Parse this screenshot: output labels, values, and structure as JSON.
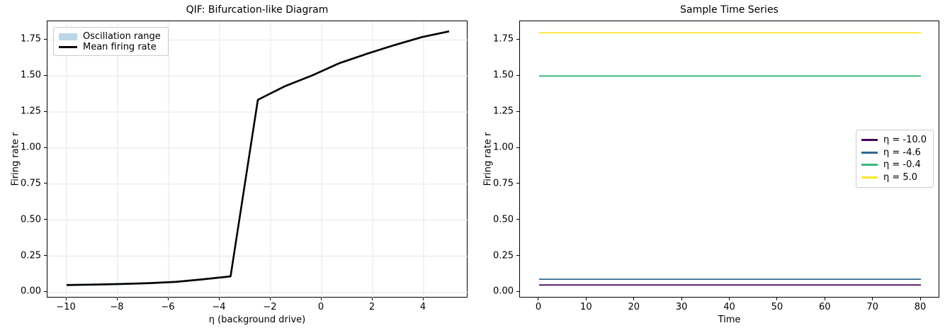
{
  "figure": {
    "background": "#ffffff"
  },
  "chart_data": [
    {
      "type": "line",
      "title": "QIF: Bifurcation-like Diagram",
      "xlabel": "η (background drive)",
      "ylabel": "Firing rate r",
      "xlim": [
        -10.75,
        5.75
      ],
      "ylim": [
        -0.042,
        1.88
      ],
      "xticks": [
        -10,
        -8,
        -6,
        -4,
        -2,
        0,
        2,
        4
      ],
      "xtick_labels": [
        "−10",
        "−8",
        "−6",
        "−4",
        "−2",
        "0",
        "2",
        "4"
      ],
      "yticks": [
        0.0,
        0.25,
        0.5,
        0.75,
        1.0,
        1.25,
        1.5,
        1.75
      ],
      "ytick_labels": [
        "0.00",
        "0.25",
        "0.50",
        "0.75",
        "1.00",
        "1.25",
        "1.50",
        "1.75"
      ],
      "grid": true,
      "grid_color": "#e6e6e6",
      "legend": {
        "position": "upper-left",
        "items": [
          {
            "label": "Oscillation range",
            "kind": "patch",
            "color": "#bcd6e9"
          },
          {
            "label": "Mean firing rate",
            "kind": "line",
            "color": "#000000"
          }
        ]
      },
      "series": [
        {
          "name": "Oscillation range",
          "kind": "band",
          "color": "#bcd6e9",
          "x": [
            -10.0,
            -8.93,
            -7.86,
            -6.79,
            -5.71,
            -4.64,
            -3.57,
            -2.5,
            -1.43,
            -0.36,
            0.71,
            1.79,
            2.86,
            3.93,
            5.0
          ],
          "y_low": [
            0.042,
            0.045,
            0.049,
            0.055,
            0.064,
            0.082,
            0.102,
            1.327,
            1.422,
            1.497,
            1.582,
            1.647,
            1.707,
            1.762,
            1.802
          ],
          "y_high": [
            0.058,
            0.061,
            0.065,
            0.071,
            0.08,
            0.098,
            0.118,
            1.343,
            1.438,
            1.513,
            1.598,
            1.663,
            1.723,
            1.778,
            1.818
          ]
        },
        {
          "name": "Mean firing rate",
          "kind": "line",
          "color": "#000000",
          "width": 2.6,
          "x": [
            -10.0,
            -8.93,
            -7.86,
            -6.79,
            -5.71,
            -4.64,
            -3.57,
            -2.5,
            -1.43,
            -0.36,
            0.71,
            1.79,
            2.86,
            3.93,
            5.0
          ],
          "y": [
            0.05,
            0.053,
            0.057,
            0.063,
            0.072,
            0.09,
            0.11,
            1.335,
            1.43,
            1.505,
            1.59,
            1.655,
            1.715,
            1.77,
            1.81
          ]
        }
      ]
    },
    {
      "type": "line",
      "title": "Sample Time Series",
      "xlabel": "Time",
      "ylabel": "Firing rate r",
      "xlim": [
        -4,
        84
      ],
      "ylim": [
        -0.042,
        1.88
      ],
      "xticks": [
        0,
        10,
        20,
        30,
        40,
        50,
        60,
        70,
        80
      ],
      "xtick_labels": [
        "0",
        "10",
        "20",
        "30",
        "40",
        "50",
        "60",
        "70",
        "80"
      ],
      "yticks": [
        0.0,
        0.25,
        0.5,
        0.75,
        1.0,
        1.25,
        1.5,
        1.75
      ],
      "ytick_labels": [
        "0.00",
        "0.25",
        "0.50",
        "0.75",
        "1.00",
        "1.25",
        "1.50",
        "1.75"
      ],
      "grid": false,
      "grid_color": "#e6e6e6",
      "legend": {
        "position": "center-right",
        "items": [
          {
            "label": "η = -10.0",
            "kind": "line",
            "color": "#440154"
          },
          {
            "label": "η = -4.6",
            "kind": "line",
            "color": "#31688e"
          },
          {
            "label": "η = -0.4",
            "kind": "line",
            "color": "#35b779"
          },
          {
            "label": "η = 5.0",
            "kind": "line",
            "color": "#fde725"
          }
        ]
      },
      "series": [
        {
          "name": "η = -10.0",
          "kind": "line",
          "color": "#440154",
          "width": 1.8,
          "x": [
            0,
            80
          ],
          "y": [
            0.05,
            0.05
          ]
        },
        {
          "name": "η = -4.6",
          "kind": "line",
          "color": "#31688e",
          "width": 1.8,
          "x": [
            0,
            80
          ],
          "y": [
            0.09,
            0.09
          ]
        },
        {
          "name": "η = -0.4",
          "kind": "line",
          "color": "#35b779",
          "width": 1.8,
          "x": [
            0,
            80
          ],
          "y": [
            1.5,
            1.5
          ]
        },
        {
          "name": "η = 5.0",
          "kind": "line",
          "color": "#fde725",
          "width": 1.8,
          "x": [
            0,
            80
          ],
          "y": [
            1.8,
            1.8
          ]
        }
      ]
    }
  ]
}
